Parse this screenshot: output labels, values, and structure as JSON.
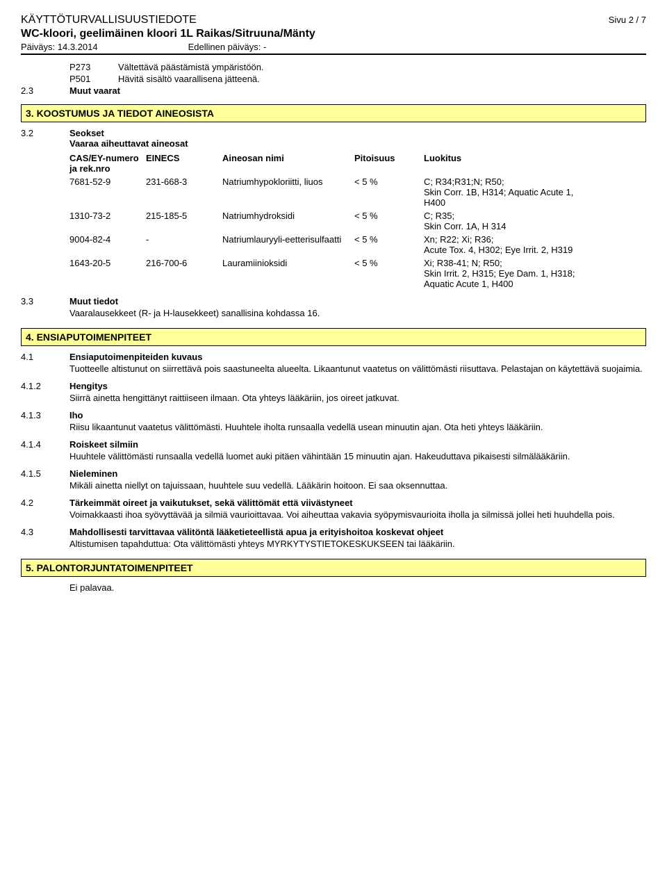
{
  "header": {
    "doc_title": "KÄYTTÖTURVALLISUUSTIEDOTE",
    "page": "Sivu 2 / 7",
    "subtitle": "WC-kloori, geelimäinen kloori 1L Raikas/Sitruuna/Mänty",
    "date_label": "Päiväys: 14.3.2014",
    "prev_date_label": "Edellinen päiväys: -"
  },
  "pstatements": [
    {
      "code": "P273",
      "text": "Vältettävä päästämistä ympäristöön."
    },
    {
      "code": "P501",
      "text": "Hävitä sisältö vaarallisena jätteenä."
    }
  ],
  "sec2_3": {
    "num": "2.3",
    "title": "Muut vaarat"
  },
  "sec3": {
    "title": "3. KOOSTUMUS JA TIEDOT AINEOSISTA",
    "s3_2_num": "3.2",
    "s3_2_title": "Seokset",
    "s3_2_sub": "Vaaraa aiheuttavat aineosat",
    "cols": {
      "cas": "CAS/EY-numero ja rek.nro",
      "einecs": "EINECS",
      "name": "Aineosan nimi",
      "conc": "Pitoisuus",
      "class": "Luokitus"
    },
    "rows": [
      {
        "cas": "7681-52-9",
        "einecs": "231-668-3",
        "name": "Natriumhypokloriitti, liuos",
        "conc": "< 5 %",
        "class": "C; R34;R31;N; R50;\nSkin Corr. 1B, H314; Aquatic Acute 1, H400"
      },
      {
        "cas": "1310-73-2",
        "einecs": "215-185-5",
        "name": "Natriumhydroksidi",
        "conc": "< 5 %",
        "class": "C; R35;\nSkin Corr. 1A, H 314"
      },
      {
        "cas": "9004-82-4",
        "einecs": "-",
        "name": "Natriumlauryyli-eetterisulfaatti",
        "conc": "< 5 %",
        "class": "Xn; R22; Xi; R36;\nAcute Tox. 4, H302; Eye Irrit. 2, H319"
      },
      {
        "cas": "1643-20-5",
        "einecs": "216-700-6",
        "name": "Lauramiinioksidi",
        "conc": "< 5 %",
        "class": "Xi; R38-41; N; R50;\nSkin Irrit. 2, H315; Eye Dam. 1, H318; Aquatic Acute 1, H400"
      }
    ],
    "s3_3_num": "3.3",
    "s3_3_title": "Muut tiedot",
    "s3_3_text": "Vaaralausekkeet (R- ja H-lausekkeet) sanallisina kohdassa 16."
  },
  "sec4": {
    "title": "4. ENSIAPUTOIMENPITEET",
    "items": [
      {
        "num": "4.1",
        "title": "Ensiaputoimenpiteiden kuvaus",
        "text": "Tuotteelle altistunut on siirrettävä pois saastuneelta alueelta. Likaantunut vaatetus on välittömästi riisuttava. Pelastajan on käytettävä suojaimia."
      },
      {
        "num": "4.1.2",
        "title": "Hengitys",
        "text": "Siirrä ainetta hengittänyt raittiiseen ilmaan. Ota yhteys lääkäriin, jos oireet jatkuvat."
      },
      {
        "num": "4.1.3",
        "title": "Iho",
        "text": "Riisu likaantunut vaatetus välittömästi.  Huuhtele iholta runsaalla vedellä usean minuutin ajan. Ota heti yhteys lääkäriin."
      },
      {
        "num": "4.1.4",
        "title": "Roiskeet silmiin",
        "text": "Huuhtele välittömästi runsaalla vedellä luomet auki pitäen vähintään 15 minuutin ajan. Hakeuduttava pikaisesti silmälääkäriin."
      },
      {
        "num": "4.1.5",
        "title": "Nieleminen",
        "text": "Mikäli ainetta niellyt on tajuissaan, huuhtele suu vedellä. Lääkärin hoitoon. Ei saa oksennuttaa."
      },
      {
        "num": "4.2",
        "title": "Tärkeimmät oireet ja vaikutukset, sekä välittömät että viivästyneet",
        "text": "Voimakkaasti ihoa syövyttävää ja silmiä vaurioittavaa. Voi aiheuttaa vakavia syöpymisvaurioita iholla ja silmissä jollei heti huuhdella pois."
      },
      {
        "num": "4.3",
        "title": "Mahdollisesti tarvittavaa välitöntä lääketieteellistä apua ja erityishoitoa koskevat ohjeet",
        "text": "Altistumisen tapahduttua: Ota välittömästi yhteys MYRKYTYSTIETOKESKUKSEEN tai lääkäriin."
      }
    ]
  },
  "sec5": {
    "title": "5. PALONTORJUNTATOIMENPITEET",
    "text": "Ei palavaa."
  }
}
